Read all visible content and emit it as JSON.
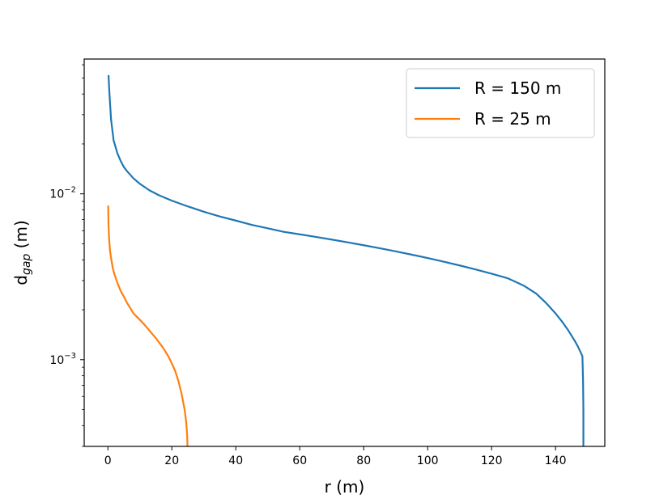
{
  "chart_data": {
    "type": "line",
    "xlabel": "r (m)",
    "ylabel_main": "d",
    "ylabel_sub": "gap",
    "ylabel_unit": " (m)",
    "yscale": "log",
    "xlim": [
      -7.4,
      155.4
    ],
    "ylim": [
      0.0003,
      0.065
    ],
    "xticks": [
      0,
      20,
      40,
      60,
      80,
      100,
      120,
      140
    ],
    "yticks": [
      {
        "value": 0.001,
        "base": "10",
        "exp": "−3"
      },
      {
        "value": 0.01,
        "base": "10",
        "exp": "−2"
      }
    ],
    "legend_position": "upper right",
    "series": [
      {
        "name": "R = 150 m",
        "color": "#1f77b4",
        "points": [
          [
            0.2,
            0.052
          ],
          [
            0.5,
            0.04
          ],
          [
            1,
            0.028
          ],
          [
            1.8,
            0.021
          ],
          [
            3,
            0.0175
          ],
          [
            4,
            0.0158
          ],
          [
            5,
            0.0145
          ],
          [
            6,
            0.0137
          ],
          [
            8,
            0.0124
          ],
          [
            10,
            0.0115
          ],
          [
            13,
            0.0105
          ],
          [
            16,
            0.0098
          ],
          [
            20,
            0.0091
          ],
          [
            25,
            0.0084
          ],
          [
            30,
            0.0078
          ],
          [
            35,
            0.0073
          ],
          [
            40,
            0.0069
          ],
          [
            45,
            0.0065
          ],
          [
            50,
            0.0062
          ],
          [
            55,
            0.0059
          ],
          [
            60,
            0.0057
          ],
          [
            65,
            0.0055
          ],
          [
            70,
            0.0053
          ],
          [
            75,
            0.0051
          ],
          [
            80,
            0.0049
          ],
          [
            85,
            0.0047
          ],
          [
            90,
            0.0045
          ],
          [
            95,
            0.0043
          ],
          [
            100,
            0.0041
          ],
          [
            105,
            0.0039
          ],
          [
            110,
            0.0037
          ],
          [
            115,
            0.0035
          ],
          [
            120,
            0.0033
          ],
          [
            125,
            0.0031
          ],
          [
            130,
            0.0028
          ],
          [
            134,
            0.0025
          ],
          [
            137,
            0.0022
          ],
          [
            140,
            0.0019
          ],
          [
            142,
            0.0017
          ],
          [
            144,
            0.0015
          ],
          [
            146,
            0.0013
          ],
          [
            147,
            0.0012
          ],
          [
            148.4,
            0.00105
          ],
          [
            148.6,
            0.00075
          ],
          [
            148.7,
            0.0005
          ],
          [
            148.7,
            0.0003
          ]
        ]
      },
      {
        "name": "R = 25 m",
        "color": "#ff7f0e",
        "points": [
          [
            0.1,
            0.0085
          ],
          [
            0.2,
            0.0065
          ],
          [
            0.4,
            0.0053
          ],
          [
            0.7,
            0.0045
          ],
          [
            1,
            0.0041
          ],
          [
            1.5,
            0.0036
          ],
          [
            2,
            0.0033
          ],
          [
            3,
            0.0029
          ],
          [
            4,
            0.0026
          ],
          [
            5,
            0.0024
          ],
          [
            6,
            0.0022
          ],
          [
            7,
            0.00205
          ],
          [
            8,
            0.0019
          ],
          [
            9,
            0.00182
          ],
          [
            10,
            0.00174
          ],
          [
            11,
            0.00166
          ],
          [
            12,
            0.00158
          ],
          [
            13,
            0.0015
          ],
          [
            14,
            0.00142
          ],
          [
            15,
            0.00135
          ],
          [
            16,
            0.00127
          ],
          [
            17,
            0.0012
          ],
          [
            18,
            0.00112
          ],
          [
            19,
            0.00104
          ],
          [
            20,
            0.00095
          ],
          [
            21,
            0.00086
          ],
          [
            22,
            0.00075
          ],
          [
            23,
            0.00063
          ],
          [
            24,
            0.0005
          ],
          [
            24.5,
            0.00042
          ],
          [
            24.8,
            0.00035
          ],
          [
            24.9,
            0.0003
          ]
        ]
      }
    ]
  }
}
